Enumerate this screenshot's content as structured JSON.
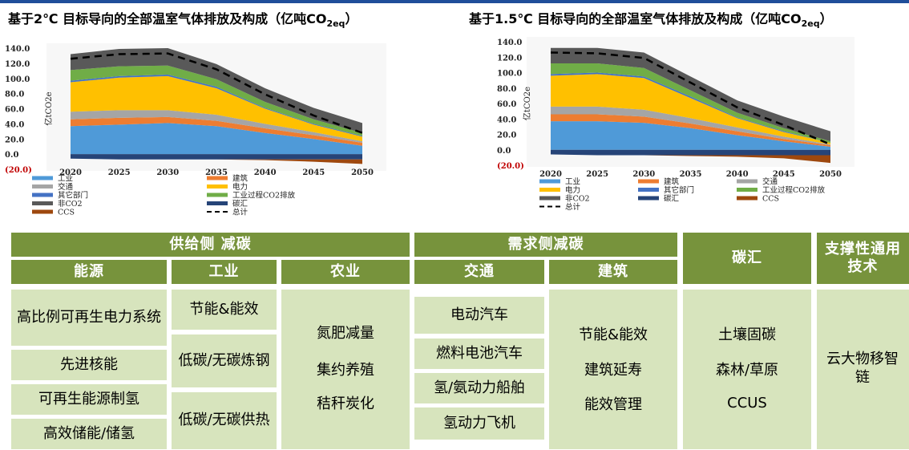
{
  "charts": [
    {
      "title_main": "基于2℃ 目标导向的全部温室气体排放及构成（亿吨CO",
      "title_sub": "2eq",
      "title_close": "）",
      "ylabel": "亿tCO2e",
      "yticks": [
        "140.0",
        "120.0",
        "100.0",
        "80.0",
        "60.0",
        "40.0",
        "20.0",
        "0.0",
        "(20.0)"
      ],
      "xticks": [
        "2020",
        "2025",
        "2030",
        "2035",
        "2040",
        "2045",
        "2050"
      ],
      "legend": [
        "工业",
        "建筑",
        "交通",
        "电力",
        "其它部门",
        "工业过程CO2排放",
        "非CO2",
        "碳汇",
        "CCS",
        "总计"
      ]
    },
    {
      "title_main": "基于1.5℃ 目标导向的全部温室气体排放及构成（亿吨CO",
      "title_sub": "2eq",
      "title_close": "）",
      "ylabel": "亿tCO2e",
      "yticks": [
        "140.0",
        "120.0",
        "100.0",
        "80.0",
        "60.0",
        "40.0",
        "20.0",
        "0.0",
        "(20.0)"
      ],
      "xticks": [
        "2020",
        "2025",
        "2030",
        "2035",
        "2040",
        "2045",
        "2050"
      ],
      "legend": [
        "工业",
        "建筑",
        "交通",
        "电力",
        "其它部门",
        "工业过程CO2排放",
        "非CO2",
        "碳汇",
        "CCS",
        "总计"
      ]
    }
  ],
  "colors": {
    "industry": "#4f9ad8",
    "building": "#ed7d31",
    "transport": "#a5a5a5",
    "power": "#ffc000",
    "other": "#4472c4",
    "process": "#70ad47",
    "nonco2": "#595959",
    "sink": "#264478",
    "ccs": "#9e480e",
    "total": "#000000",
    "header_green": "#77933c",
    "cell_green": "#d7e4bd"
  },
  "chart_data": [
    {
      "type": "area",
      "title": "基于2℃ 目标导向的全部温室气体排放及构成（亿吨CO2eq）",
      "ylabel": "亿tCO2e",
      "x": [
        2020,
        2025,
        2030,
        2035,
        2040,
        2045,
        2050
      ],
      "ylim": [
        -20,
        140
      ],
      "series": [
        {
          "name": "工业",
          "values": [
            37,
            39,
            41,
            37,
            28,
            20,
            11
          ]
        },
        {
          "name": "建筑",
          "values": [
            9,
            9,
            8,
            7,
            6,
            5,
            4
          ]
        },
        {
          "name": "交通",
          "values": [
            10,
            10,
            9,
            8,
            6,
            4,
            2
          ]
        },
        {
          "name": "电力",
          "values": [
            39,
            43,
            45,
            35,
            20,
            10,
            6
          ]
        },
        {
          "name": "其它部门",
          "values": [
            2,
            2,
            2,
            2,
            1,
            1,
            1
          ]
        },
        {
          "name": "工业过程CO2排放",
          "values": [
            14,
            13,
            12,
            10,
            8,
            6,
            4
          ]
        },
        {
          "name": "非CO2",
          "values": [
            21,
            23,
            23,
            20,
            18,
            15,
            13
          ]
        },
        {
          "name": "碳汇",
          "values": [
            -6,
            -7,
            -7,
            -7,
            -7,
            -7,
            -7
          ]
        },
        {
          "name": "CCS",
          "values": [
            0,
            0,
            0,
            0,
            -1,
            -3,
            -6
          ]
        },
        {
          "name": "总计",
          "values": [
            126,
            132,
            133,
            112,
            79,
            51,
            28
          ]
        }
      ]
    },
    {
      "type": "area",
      "title": "基于1.5℃ 目标导向的全部温室气体排放及构成（亿吨CO2eq）",
      "ylabel": "亿tCO2e",
      "x": [
        2020,
        2025,
        2030,
        2035,
        2040,
        2045,
        2050
      ],
      "ylim": [
        -20,
        140
      ],
      "series": [
        {
          "name": "工业",
          "values": [
            37,
            37,
            35,
            28,
            19,
            11,
            4
          ]
        },
        {
          "name": "建筑",
          "values": [
            9,
            9,
            8,
            6,
            5,
            3,
            2
          ]
        },
        {
          "name": "交通",
          "values": [
            10,
            10,
            9,
            7,
            5,
            3,
            1
          ]
        },
        {
          "name": "电力",
          "values": [
            40,
            42,
            41,
            26,
            12,
            6,
            2
          ]
        },
        {
          "name": "其它部门",
          "values": [
            2,
            2,
            2,
            2,
            1,
            1,
            0
          ]
        },
        {
          "name": "工业过程CO2排放",
          "values": [
            14,
            12,
            11,
            8,
            6,
            4,
            2
          ]
        },
        {
          "name": "非CO2",
          "values": [
            20,
            20,
            20,
            18,
            16,
            15,
            13
          ]
        },
        {
          "name": "碳汇",
          "values": [
            -6,
            -7,
            -7,
            -7,
            -7,
            -7,
            -7
          ]
        },
        {
          "name": "CCS",
          "values": [
            0,
            0,
            0,
            -1,
            -2,
            -4,
            -10
          ]
        },
        {
          "name": "总计",
          "values": [
            126,
            125,
            119,
            87,
            55,
            32,
            7
          ]
        }
      ]
    }
  ],
  "table": {
    "supply_header": "供给侧 减碳",
    "demand_header": "需求侧减碳",
    "sink_header": "碳汇",
    "support_header": "支撑性通用技术",
    "energy_header": "能源",
    "industry_header": "工业",
    "agri_header": "农业",
    "transport_header": "交通",
    "building_header": "建筑",
    "energy_items": [
      "高比例可再生电力系统",
      "先进核能",
      "可再生能源制氢",
      "高效储能/储氢"
    ],
    "industry_items": [
      "节能&能效",
      "低碳/无碳炼钢",
      "低碳/无碳供热"
    ],
    "agri_items": [
      "氮肥减量",
      "集约养殖",
      "秸秆炭化"
    ],
    "transport_items": [
      "电动汽车",
      "燃料电池汽车",
      "氢/氨动力船舶",
      "氢动力飞机"
    ],
    "building_items": [
      "节能&能效",
      "建筑延寿",
      "能效管理"
    ],
    "sink_items": [
      "土壤固碳",
      "森林/草原",
      "CCUS"
    ],
    "support_items": [
      "云大物移智链"
    ]
  }
}
